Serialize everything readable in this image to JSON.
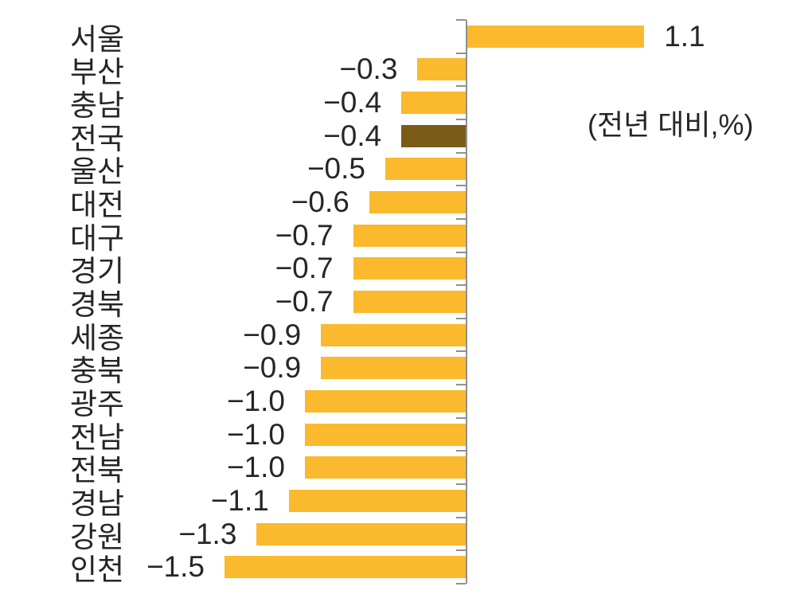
{
  "chart_data": {
    "type": "bar",
    "orientation": "horizontal",
    "title": "",
    "unit_label": "(전년 대비,%)",
    "categories": [
      "서울",
      "부산",
      "충남",
      "전국",
      "울산",
      "대전",
      "대구",
      "경기",
      "경북",
      "세종",
      "충북",
      "광주",
      "전남",
      "전북",
      "경남",
      "강원",
      "인천"
    ],
    "values": [
      1.1,
      -0.3,
      -0.4,
      -0.4,
      -0.5,
      -0.6,
      -0.7,
      -0.7,
      -0.7,
      -0.9,
      -0.9,
      -1.0,
      -1.0,
      -1.0,
      -1.1,
      -1.3,
      -1.5
    ],
    "value_labels": [
      "1.1",
      "−0.3",
      "−0.4",
      "−0.4",
      "−0.5",
      "−0.6",
      "−0.7",
      "−0.7",
      "−0.7",
      "−0.9",
      "−0.9",
      "−1.0",
      "−1.0",
      "−1.0",
      "−1.1",
      "−1.3",
      "−1.5"
    ],
    "highlight_category": "전국",
    "xlim": [
      -1.5,
      1.1
    ],
    "grid": "off",
    "axis_style": "zero-baseline vertical axis with outward ticks per category",
    "colors": {
      "bar": "#FBB92D",
      "highlight_bar": "#7A5C16",
      "axis": "#8F8F8F",
      "text": "#262626"
    }
  }
}
